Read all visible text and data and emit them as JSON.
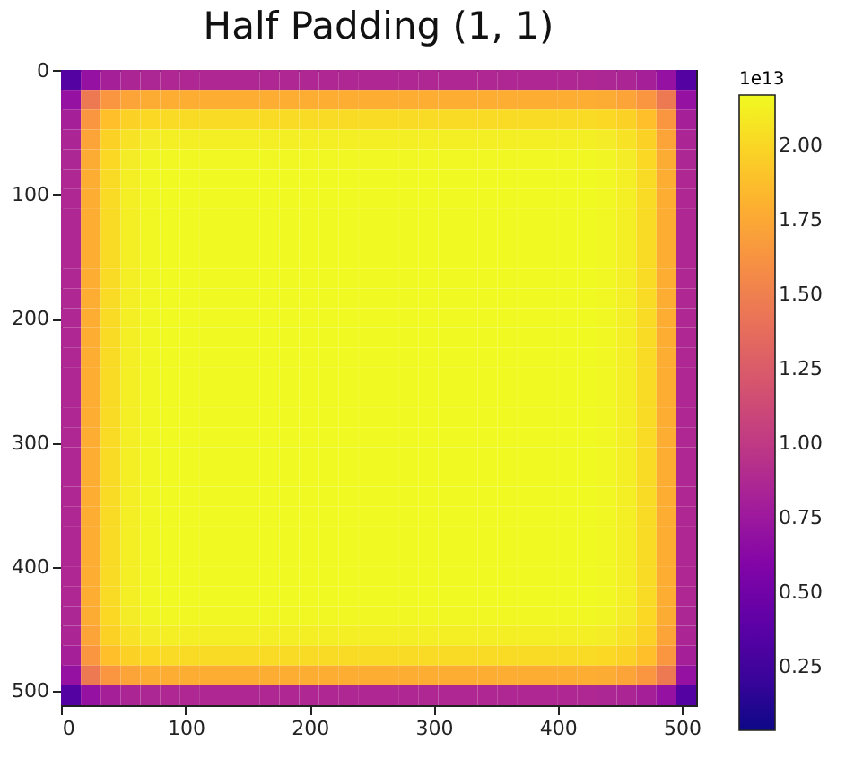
{
  "chart_data": {
    "type": "heatmap",
    "title": "Half Padding (1, 1)",
    "clabel": "1e13",
    "x": [
      7.5,
      23.5,
      39.5,
      55.5,
      71.5,
      87.5,
      103.5,
      119.5,
      135.5,
      151.5,
      167.5,
      183.5,
      199.5,
      215.5,
      231.5,
      247.5,
      263.5,
      279.5,
      295.5,
      311.5,
      327.5,
      343.5,
      359.5,
      375.5,
      391.5,
      407.5,
      423.5,
      439.5,
      455.5,
      471.5,
      487.5,
      503.5
    ],
    "xlim": [
      -0.5,
      511.5
    ],
    "xticks": [
      0,
      100,
      200,
      300,
      400,
      500
    ],
    "ylim": [
      511.5,
      -0.5
    ],
    "yticks": [
      0,
      100,
      200,
      300,
      400,
      500
    ],
    "clim": [
      0.04,
      2.17
    ],
    "cticks": [
      0.25,
      {
        "value": 0.5,
        "label": "0.50"
      },
      0.75,
      {
        "value": 1,
        "label": "1.00"
      },
      1.25,
      {
        "value": 1.5,
        "label": "1.50"
      },
      1.75,
      {
        "value": 2,
        "label": "2.00"
      }
    ],
    "cells": [
      [
        0.35,
        0.71,
        0.81,
        0.85,
        0.86,
        0.87,
        0.87,
        0.87,
        0.87,
        0.87,
        0.87,
        0.87,
        0.87,
        0.87,
        0.87,
        0.87,
        0.87,
        0.87,
        0.87,
        0.87,
        0.87,
        0.87,
        0.87,
        0.87,
        0.87,
        0.87,
        0.87,
        0.86,
        0.85,
        0.81,
        0.71,
        0.35
      ],
      [
        0.71,
        1.46,
        1.65,
        1.73,
        1.77,
        1.78,
        1.78,
        1.78,
        1.78,
        1.78,
        1.78,
        1.78,
        1.78,
        1.78,
        1.78,
        1.78,
        1.78,
        1.78,
        1.78,
        1.78,
        1.78,
        1.78,
        1.78,
        1.78,
        1.78,
        1.78,
        1.78,
        1.77,
        1.73,
        1.65,
        1.46,
        0.71
      ],
      [
        0.81,
        1.65,
        1.88,
        1.97,
        2.01,
        2.02,
        2.02,
        2.02,
        2.02,
        2.02,
        2.02,
        2.02,
        2.02,
        2.02,
        2.02,
        2.02,
        2.02,
        2.02,
        2.02,
        2.02,
        2.02,
        2.02,
        2.02,
        2.02,
        2.02,
        2.02,
        2.02,
        2.01,
        1.97,
        1.88,
        1.65,
        0.81
      ],
      [
        0.85,
        1.73,
        1.97,
        2.06,
        2.11,
        2.12,
        2.12,
        2.12,
        2.12,
        2.12,
        2.12,
        2.12,
        2.12,
        2.12,
        2.12,
        2.12,
        2.12,
        2.12,
        2.12,
        2.12,
        2.12,
        2.12,
        2.12,
        2.12,
        2.12,
        2.12,
        2.12,
        2.11,
        2.06,
        1.97,
        1.73,
        0.85
      ],
      [
        0.86,
        1.77,
        2.01,
        2.11,
        2.15,
        2.16,
        2.16,
        2.16,
        2.16,
        2.16,
        2.16,
        2.16,
        2.16,
        2.16,
        2.16,
        2.16,
        2.16,
        2.16,
        2.16,
        2.16,
        2.16,
        2.16,
        2.16,
        2.16,
        2.16,
        2.16,
        2.16,
        2.15,
        2.11,
        2.01,
        1.77,
        0.86
      ],
      [
        0.87,
        1.78,
        2.02,
        2.12,
        2.16,
        2.17,
        2.17,
        2.17,
        2.17,
        2.17,
        2.17,
        2.17,
        2.17,
        2.17,
        2.17,
        2.17,
        2.17,
        2.17,
        2.17,
        2.17,
        2.17,
        2.17,
        2.17,
        2.17,
        2.17,
        2.17,
        2.17,
        2.16,
        2.12,
        2.02,
        1.78,
        0.87
      ],
      [
        0.87,
        1.78,
        2.02,
        2.12,
        2.16,
        2.17,
        2.17,
        2.17,
        2.17,
        2.17,
        2.17,
        2.17,
        2.17,
        2.17,
        2.17,
        2.17,
        2.17,
        2.17,
        2.17,
        2.17,
        2.17,
        2.17,
        2.17,
        2.17,
        2.17,
        2.17,
        2.17,
        2.16,
        2.12,
        2.02,
        1.78,
        0.87
      ],
      [
        0.87,
        1.78,
        2.02,
        2.12,
        2.16,
        2.17,
        2.17,
        2.17,
        2.17,
        2.17,
        2.17,
        2.17,
        2.17,
        2.17,
        2.17,
        2.17,
        2.17,
        2.17,
        2.17,
        2.17,
        2.17,
        2.17,
        2.17,
        2.17,
        2.17,
        2.17,
        2.17,
        2.16,
        2.12,
        2.02,
        1.78,
        0.87
      ],
      [
        0.87,
        1.78,
        2.02,
        2.12,
        2.16,
        2.17,
        2.17,
        2.17,
        2.17,
        2.17,
        2.17,
        2.17,
        2.17,
        2.17,
        2.17,
        2.17,
        2.17,
        2.17,
        2.17,
        2.17,
        2.17,
        2.17,
        2.17,
        2.17,
        2.17,
        2.17,
        2.17,
        2.16,
        2.12,
        2.02,
        1.78,
        0.87
      ],
      [
        0.87,
        1.78,
        2.02,
        2.12,
        2.16,
        2.17,
        2.17,
        2.17,
        2.17,
        2.17,
        2.17,
        2.17,
        2.17,
        2.17,
        2.17,
        2.17,
        2.17,
        2.17,
        2.17,
        2.17,
        2.17,
        2.17,
        2.17,
        2.17,
        2.17,
        2.17,
        2.17,
        2.16,
        2.12,
        2.02,
        1.78,
        0.87
      ],
      [
        0.87,
        1.78,
        2.02,
        2.12,
        2.16,
        2.17,
        2.17,
        2.17,
        2.17,
        2.17,
        2.17,
        2.17,
        2.17,
        2.17,
        2.17,
        2.17,
        2.17,
        2.17,
        2.17,
        2.17,
        2.17,
        2.17,
        2.17,
        2.17,
        2.17,
        2.17,
        2.17,
        2.16,
        2.12,
        2.02,
        1.78,
        0.87
      ],
      [
        0.87,
        1.78,
        2.02,
        2.12,
        2.16,
        2.17,
        2.17,
        2.17,
        2.17,
        2.17,
        2.17,
        2.17,
        2.17,
        2.17,
        2.17,
        2.17,
        2.17,
        2.17,
        2.17,
        2.17,
        2.17,
        2.17,
        2.17,
        2.17,
        2.17,
        2.17,
        2.17,
        2.16,
        2.12,
        2.02,
        1.78,
        0.87
      ],
      [
        0.87,
        1.78,
        2.02,
        2.12,
        2.16,
        2.17,
        2.17,
        2.17,
        2.17,
        2.17,
        2.17,
        2.17,
        2.17,
        2.17,
        2.17,
        2.17,
        2.17,
        2.17,
        2.17,
        2.17,
        2.17,
        2.17,
        2.17,
        2.17,
        2.17,
        2.17,
        2.17,
        2.16,
        2.12,
        2.02,
        1.78,
        0.87
      ],
      [
        0.87,
        1.78,
        2.02,
        2.12,
        2.16,
        2.17,
        2.17,
        2.17,
        2.17,
        2.17,
        2.17,
        2.17,
        2.17,
        2.17,
        2.17,
        2.17,
        2.17,
        2.17,
        2.17,
        2.17,
        2.17,
        2.17,
        2.17,
        2.17,
        2.17,
        2.17,
        2.17,
        2.16,
        2.12,
        2.02,
        1.78,
        0.87
      ],
      [
        0.87,
        1.78,
        2.02,
        2.12,
        2.16,
        2.17,
        2.17,
        2.17,
        2.17,
        2.17,
        2.17,
        2.17,
        2.17,
        2.17,
        2.17,
        2.17,
        2.17,
        2.17,
        2.17,
        2.17,
        2.17,
        2.17,
        2.17,
        2.17,
        2.17,
        2.17,
        2.17,
        2.16,
        2.12,
        2.02,
        1.78,
        0.87
      ],
      [
        0.87,
        1.78,
        2.02,
        2.12,
        2.16,
        2.17,
        2.17,
        2.17,
        2.17,
        2.17,
        2.17,
        2.17,
        2.17,
        2.17,
        2.17,
        2.17,
        2.17,
        2.17,
        2.17,
        2.17,
        2.17,
        2.17,
        2.17,
        2.17,
        2.17,
        2.17,
        2.17,
        2.16,
        2.12,
        2.02,
        1.78,
        0.87
      ],
      [
        0.87,
        1.78,
        2.02,
        2.12,
        2.16,
        2.17,
        2.17,
        2.17,
        2.17,
        2.17,
        2.17,
        2.17,
        2.17,
        2.17,
        2.17,
        2.17,
        2.17,
        2.17,
        2.17,
        2.17,
        2.17,
        2.17,
        2.17,
        2.17,
        2.17,
        2.17,
        2.17,
        2.16,
        2.12,
        2.02,
        1.78,
        0.87
      ],
      [
        0.87,
        1.78,
        2.02,
        2.12,
        2.16,
        2.17,
        2.17,
        2.17,
        2.17,
        2.17,
        2.17,
        2.17,
        2.17,
        2.17,
        2.17,
        2.17,
        2.17,
        2.17,
        2.17,
        2.17,
        2.17,
        2.17,
        2.17,
        2.17,
        2.17,
        2.17,
        2.17,
        2.16,
        2.12,
        2.02,
        1.78,
        0.87
      ],
      [
        0.87,
        1.78,
        2.02,
        2.12,
        2.16,
        2.17,
        2.17,
        2.17,
        2.17,
        2.17,
        2.17,
        2.17,
        2.17,
        2.17,
        2.17,
        2.17,
        2.17,
        2.17,
        2.17,
        2.17,
        2.17,
        2.17,
        2.17,
        2.17,
        2.17,
        2.17,
        2.17,
        2.16,
        2.12,
        2.02,
        1.78,
        0.87
      ],
      [
        0.87,
        1.78,
        2.02,
        2.12,
        2.16,
        2.17,
        2.17,
        2.17,
        2.17,
        2.17,
        2.17,
        2.17,
        2.17,
        2.17,
        2.17,
        2.17,
        2.17,
        2.17,
        2.17,
        2.17,
        2.17,
        2.17,
        2.17,
        2.17,
        2.17,
        2.17,
        2.17,
        2.16,
        2.12,
        2.02,
        1.78,
        0.87
      ],
      [
        0.87,
        1.78,
        2.02,
        2.12,
        2.16,
        2.17,
        2.17,
        2.17,
        2.17,
        2.17,
        2.17,
        2.17,
        2.17,
        2.17,
        2.17,
        2.17,
        2.17,
        2.17,
        2.17,
        2.17,
        2.17,
        2.17,
        2.17,
        2.17,
        2.17,
        2.17,
        2.17,
        2.16,
        2.12,
        2.02,
        1.78,
        0.87
      ],
      [
        0.87,
        1.78,
        2.02,
        2.12,
        2.16,
        2.17,
        2.17,
        2.17,
        2.17,
        2.17,
        2.17,
        2.17,
        2.17,
        2.17,
        2.17,
        2.17,
        2.17,
        2.17,
        2.17,
        2.17,
        2.17,
        2.17,
        2.17,
        2.17,
        2.17,
        2.17,
        2.17,
        2.16,
        2.12,
        2.02,
        1.78,
        0.87
      ],
      [
        0.87,
        1.78,
        2.02,
        2.12,
        2.16,
        2.17,
        2.17,
        2.17,
        2.17,
        2.17,
        2.17,
        2.17,
        2.17,
        2.17,
        2.17,
        2.17,
        2.17,
        2.17,
        2.17,
        2.17,
        2.17,
        2.17,
        2.17,
        2.17,
        2.17,
        2.17,
        2.17,
        2.16,
        2.12,
        2.02,
        1.78,
        0.87
      ],
      [
        0.87,
        1.78,
        2.02,
        2.12,
        2.16,
        2.17,
        2.17,
        2.17,
        2.17,
        2.17,
        2.17,
        2.17,
        2.17,
        2.17,
        2.17,
        2.17,
        2.17,
        2.17,
        2.17,
        2.17,
        2.17,
        2.17,
        2.17,
        2.17,
        2.17,
        2.17,
        2.17,
        2.16,
        2.12,
        2.02,
        1.78,
        0.87
      ],
      [
        0.87,
        1.78,
        2.02,
        2.12,
        2.16,
        2.17,
        2.17,
        2.17,
        2.17,
        2.17,
        2.17,
        2.17,
        2.17,
        2.17,
        2.17,
        2.17,
        2.17,
        2.17,
        2.17,
        2.17,
        2.17,
        2.17,
        2.17,
        2.17,
        2.17,
        2.17,
        2.17,
        2.16,
        2.12,
        2.02,
        1.78,
        0.87
      ],
      [
        0.87,
        1.78,
        2.02,
        2.12,
        2.16,
        2.17,
        2.17,
        2.17,
        2.17,
        2.17,
        2.17,
        2.17,
        2.17,
        2.17,
        2.17,
        2.17,
        2.17,
        2.17,
        2.17,
        2.17,
        2.17,
        2.17,
        2.17,
        2.17,
        2.17,
        2.17,
        2.17,
        2.16,
        2.12,
        2.02,
        1.78,
        0.87
      ],
      [
        0.87,
        1.78,
        2.02,
        2.12,
        2.16,
        2.17,
        2.17,
        2.17,
        2.17,
        2.17,
        2.17,
        2.17,
        2.17,
        2.17,
        2.17,
        2.17,
        2.17,
        2.17,
        2.17,
        2.17,
        2.17,
        2.17,
        2.17,
        2.17,
        2.17,
        2.17,
        2.17,
        2.16,
        2.12,
        2.02,
        1.78,
        0.87
      ],
      [
        0.86,
        1.77,
        2.01,
        2.11,
        2.15,
        2.16,
        2.16,
        2.16,
        2.16,
        2.16,
        2.16,
        2.16,
        2.16,
        2.16,
        2.16,
        2.16,
        2.16,
        2.16,
        2.16,
        2.16,
        2.16,
        2.16,
        2.16,
        2.16,
        2.16,
        2.16,
        2.16,
        2.15,
        2.11,
        2.01,
        1.77,
        0.86
      ],
      [
        0.85,
        1.73,
        1.97,
        2.06,
        2.11,
        2.12,
        2.12,
        2.12,
        2.12,
        2.12,
        2.12,
        2.12,
        2.12,
        2.12,
        2.12,
        2.12,
        2.12,
        2.12,
        2.12,
        2.12,
        2.12,
        2.12,
        2.12,
        2.12,
        2.12,
        2.12,
        2.12,
        2.11,
        2.06,
        1.97,
        1.73,
        0.85
      ],
      [
        0.81,
        1.65,
        1.88,
        1.97,
        2.01,
        2.02,
        2.02,
        2.02,
        2.02,
        2.02,
        2.02,
        2.02,
        2.02,
        2.02,
        2.02,
        2.02,
        2.02,
        2.02,
        2.02,
        2.02,
        2.02,
        2.02,
        2.02,
        2.02,
        2.02,
        2.02,
        2.02,
        2.01,
        1.97,
        1.88,
        1.65,
        0.81
      ],
      [
        0.71,
        1.46,
        1.65,
        1.73,
        1.77,
        1.78,
        1.78,
        1.78,
        1.78,
        1.78,
        1.78,
        1.78,
        1.78,
        1.78,
        1.78,
        1.78,
        1.78,
        1.78,
        1.78,
        1.78,
        1.78,
        1.78,
        1.78,
        1.78,
        1.78,
        1.78,
        1.78,
        1.77,
        1.73,
        1.65,
        1.46,
        0.71
      ],
      [
        0.35,
        0.71,
        0.81,
        0.85,
        0.86,
        0.87,
        0.87,
        0.87,
        0.87,
        0.87,
        0.87,
        0.87,
        0.87,
        0.87,
        0.87,
        0.87,
        0.87,
        0.87,
        0.87,
        0.87,
        0.87,
        0.87,
        0.87,
        0.87,
        0.87,
        0.87,
        0.87,
        0.86,
        0.85,
        0.81,
        0.71,
        0.35
      ]
    ]
  }
}
